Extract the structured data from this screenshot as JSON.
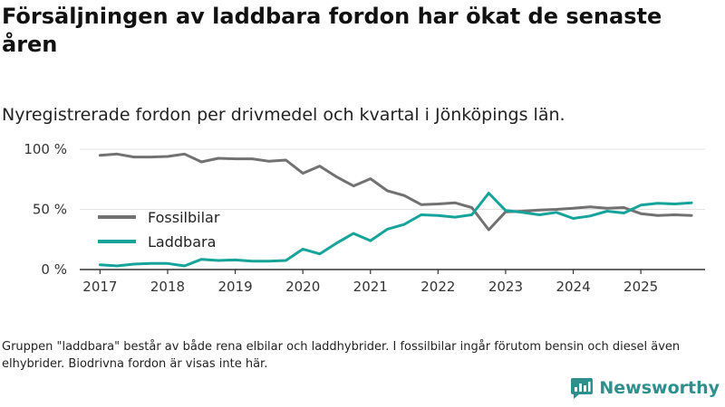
{
  "title": "Försäljningen av laddbara fordon har ökat de senaste åren",
  "subtitle": "Nyregistrerade fordon per drivmedel och kvartal i Jönköpings län.",
  "footnote": "Gruppen \"laddbara\" består av både rena elbilar och laddhybrider. I fossilbilar ingår förutom bensin och diesel även elhybrider. Biodrivna fordon är visas inte här.",
  "brand": {
    "name": "Newsworthy",
    "icon": "newsworthy-logo-icon"
  },
  "colors": {
    "fossil": "#717171",
    "laddbara": "#16a39a",
    "grid": "#e3e3e3",
    "axis": "#333333",
    "brand": "#2f8f8c"
  },
  "chart_data": {
    "type": "line",
    "title": "Försäljningen av laddbara fordon har ökat de senaste åren",
    "xlabel": "",
    "ylabel": "",
    "ylim": [
      0,
      100
    ],
    "yticks": [
      0,
      50,
      100
    ],
    "ytick_labels": [
      "0 %",
      "50 %",
      "100 %"
    ],
    "xlim": [
      2016.7,
      2025.95
    ],
    "xticks": [
      2017,
      2018,
      2019,
      2020,
      2021,
      2022,
      2023,
      2024,
      2025
    ],
    "xtick_labels": [
      "2017",
      "2018",
      "2019",
      "2020",
      "2021",
      "2022",
      "2023",
      "2024",
      "2025"
    ],
    "legend_position": "center-left",
    "x": [
      2017.0,
      2017.25,
      2017.5,
      2017.75,
      2018.0,
      2018.25,
      2018.5,
      2018.75,
      2019.0,
      2019.25,
      2019.5,
      2019.75,
      2020.0,
      2020.25,
      2020.5,
      2020.75,
      2021.0,
      2021.25,
      2021.5,
      2021.75,
      2022.0,
      2022.25,
      2022.5,
      2022.75,
      2023.0,
      2023.25,
      2023.5,
      2023.75,
      2024.0,
      2024.25,
      2024.5,
      2024.75,
      2025.0,
      2025.25,
      2025.5,
      2025.75
    ],
    "series": [
      {
        "name": "Fossilbilar",
        "values": [
          95,
          96,
          93.5,
          93.5,
          94,
          96,
          89.5,
          92.5,
          92,
          92,
          90,
          91,
          80,
          86,
          77,
          69.5,
          75.5,
          65.5,
          61.5,
          54,
          54.5,
          55.5,
          51.5,
          33,
          48,
          48.5,
          49.5,
          50,
          51,
          52,
          51,
          51.5,
          46.5,
          45,
          45.5,
          45
        ]
      },
      {
        "name": "Laddbara",
        "values": [
          4,
          3,
          4.5,
          5,
          5,
          3,
          8.5,
          7.5,
          8,
          7,
          7,
          7.5,
          17,
          13,
          22,
          30,
          24,
          33.5,
          37.5,
          45.5,
          45,
          43.5,
          45.5,
          63.5,
          49,
          47.5,
          45.5,
          47.5,
          42.5,
          44.5,
          48.5,
          47,
          53.5,
          55,
          54.5,
          55.5
        ]
      }
    ]
  }
}
